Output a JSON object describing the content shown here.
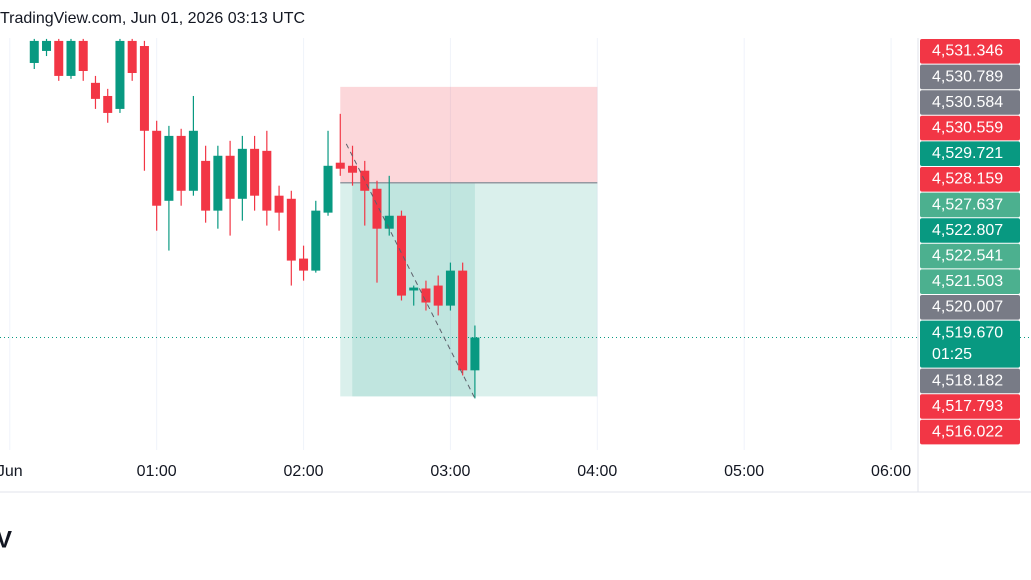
{
  "header": {
    "title": "TradingView.com, Jun 01, 2026 03:13 UTC"
  },
  "chart_data": {
    "type": "candlestick",
    "x": [
      10,
      15,
      20,
      25,
      30,
      35,
      40,
      45,
      50,
      55,
      60,
      65,
      70,
      75,
      80,
      85,
      90,
      95,
      100,
      105,
      110,
      115,
      120,
      125,
      130,
      135,
      140,
      145,
      150,
      155,
      160,
      165,
      170,
      175,
      180,
      185,
      190
    ],
    "open": [
      4534.73,
      4535.39,
      4535.94,
      4534.02,
      4535.94,
      4533.64,
      4532.92,
      4532.21,
      4535.94,
      4535.66,
      4531.01,
      4527.17,
      4530.73,
      4527.72,
      4529.36,
      4526.63,
      4529.64,
      4527.28,
      4530.02,
      4529.91,
      4527.45,
      4527.28,
      4524.0,
      4523.34,
      4526.52,
      4529.26,
      4529.09,
      4528.82,
      4527.83,
      4525.64,
      4526.35,
      4522.25,
      4522.36,
      4522.52,
      4521.42,
      4523.34,
      4517.87
    ],
    "high": [
      4536.05,
      4536.05,
      4536.05,
      4536.05,
      4536.05,
      4534.02,
      4533.31,
      4536.05,
      4536.05,
      4535.94,
      4531.56,
      4531.28,
      4531.12,
      4532.92,
      4530.19,
      4530.19,
      4530.46,
      4530.73,
      4530.73,
      4531.01,
      4528.0,
      4527.72,
      4524.71,
      4527.17,
      4531.01,
      4531.94,
      4530.19,
      4529.36,
      4528.27,
      4528.54,
      4526.63,
      4522.52,
      4522.79,
      4523.07,
      4523.78,
      4523.78,
      4520.33
    ],
    "low": [
      4534.4,
      4535.11,
      4533.75,
      4533.86,
      4533.75,
      4532.21,
      4531.45,
      4531.99,
      4533.75,
      4528.82,
      4525.53,
      4524.44,
      4526.9,
      4527.45,
      4525.97,
      4525.64,
      4525.26,
      4526.08,
      4526.63,
      4525.81,
      4525.53,
      4522.52,
      4522.79,
      4523.23,
      4526.35,
      4528.54,
      4528.0,
      4525.81,
      4522.68,
      4525.26,
      4521.7,
      4521.42,
      4521.15,
      4520.88,
      4521.15,
      4517.59,
      4516.33
    ],
    "close": [
      4535.94,
      4535.94,
      4534.02,
      4535.94,
      4534.29,
      4532.76,
      4531.99,
      4535.94,
      4534.18,
      4531.01,
      4526.9,
      4530.73,
      4527.72,
      4531.01,
      4526.63,
      4529.64,
      4527.28,
      4530.02,
      4527.45,
      4526.63,
      4526.52,
      4523.89,
      4523.34,
      4526.63,
      4529.09,
      4528.93,
      4528.71,
      4527.72,
      4525.64,
      4526.35,
      4521.97,
      4522.41,
      4521.59,
      4521.42,
      4523.34,
      4517.87,
      4519.67
    ],
    "up_color": "#089981",
    "down_color": "#f23645",
    "xlim": [
      -4,
      371
    ],
    "xticks": [
      {
        "value": 0,
        "label": "Jun"
      },
      {
        "value": 60,
        "label": "01:00"
      },
      {
        "value": 120,
        "label": "02:00"
      },
      {
        "value": 180,
        "label": "03:00"
      },
      {
        "value": 240,
        "label": "04:00"
      },
      {
        "value": 300,
        "label": "05:00"
      },
      {
        "value": 360,
        "label": "06:00"
      }
    ],
    "ylim": [
      4513.5,
      4536.1
    ],
    "position": {
      "entry": 4528.159,
      "stop": 4533.42,
      "target": 4516.44,
      "start": 135,
      "end": 240
    },
    "price_labels": [
      {
        "value": 4531.346,
        "label": "4,531.346",
        "color": "#f23645"
      },
      {
        "value": 4530.789,
        "label": "4,530.789",
        "color": "#787b86"
      },
      {
        "value": 4530.584,
        "label": "4,530.584",
        "color": "#787b86"
      },
      {
        "value": 4530.559,
        "label": "4,530.559",
        "color": "#f23645"
      },
      {
        "value": 4529.721,
        "label": "4,529.721",
        "color": "#089981"
      },
      {
        "value": 4528.159,
        "label": "4,528.159",
        "color": "#f23645"
      },
      {
        "value": 4527.637,
        "label": "4,527.637",
        "color": "#4cb08f"
      },
      {
        "value": 4522.807,
        "label": "4,522.807",
        "color": "#089981"
      },
      {
        "value": 4522.541,
        "label": "4,522.541",
        "color": "#4cb08f"
      },
      {
        "value": 4521.503,
        "label": "4,521.503",
        "color": "#4cb08f"
      },
      {
        "value": 4520.007,
        "label": "4,520.007",
        "color": "#787b86"
      },
      {
        "value": 4519.67,
        "label": "4,519.670",
        "color": "#089981",
        "countdown": "01:25"
      },
      {
        "value": 4518.182,
        "label": "4,518.182",
        "color": "#787b86"
      },
      {
        "value": 4517.793,
        "label": "4,517.793",
        "color": "#f23645"
      },
      {
        "value": 4516.022,
        "label": "4,516.022",
        "color": "#f23645"
      }
    ]
  },
  "footer": {
    "text": "V"
  }
}
